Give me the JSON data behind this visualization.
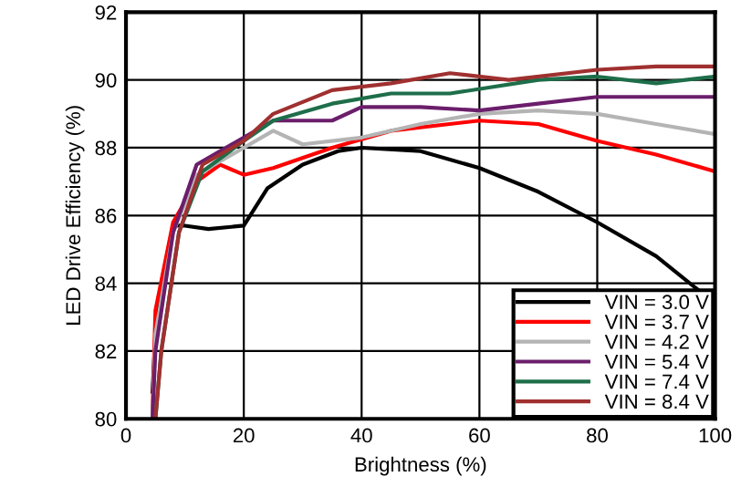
{
  "chart_data": {
    "type": "line",
    "xlabel": "Brightness (%)",
    "ylabel": "LED Drive Efficiency (%)",
    "xlim": [
      0,
      100
    ],
    "xticks": [
      0,
      20,
      40,
      60,
      80,
      100
    ],
    "ylim": [
      80,
      92
    ],
    "yticks": [
      80,
      82,
      84,
      86,
      88,
      90,
      92
    ],
    "grid": true,
    "legend": "bottom right",
    "marker": "none",
    "line_style": "solid",
    "series": [
      {
        "name": "VIN = 3.0 V",
        "color": "#000000",
        "x": [
          4.5,
          5,
          6,
          8,
          10,
          14,
          20,
          24,
          30,
          36,
          40,
          50,
          60,
          70,
          80,
          90,
          100
        ],
        "values": [
          80.8,
          82.5,
          84,
          85.7,
          85.7,
          85.6,
          85.7,
          86.8,
          87.5,
          87.9,
          88.0,
          87.9,
          87.4,
          86.7,
          85.8,
          84.8,
          83.4
        ]
      },
      {
        "name": "VIN = 3.7 V",
        "color": "#ff0000",
        "x": [
          4.5,
          5,
          8,
          12,
          16,
          20,
          25,
          35,
          45,
          60,
          70,
          80,
          90,
          100
        ],
        "values": [
          80.2,
          83.2,
          85.8,
          87.0,
          87.5,
          87.2,
          87.4,
          88.0,
          88.5,
          88.8,
          88.7,
          88.2,
          87.8,
          87.3
        ]
      },
      {
        "name": "VIN = 4.2 V",
        "color": "#b4b4b4",
        "x": [
          4.5,
          5,
          8,
          12,
          20,
          25,
          30,
          40,
          50,
          60,
          70,
          80,
          90,
          100
        ],
        "values": [
          80,
          82.5,
          85.5,
          87.2,
          88.0,
          88.5,
          88.1,
          88.3,
          88.7,
          89.0,
          89.1,
          89.0,
          88.7,
          88.4
        ]
      },
      {
        "name": "VIN = 5.4 V",
        "color": "#6b1e6b",
        "x": [
          4.5,
          5,
          8,
          12,
          20,
          25,
          35,
          40,
          50,
          60,
          70,
          80,
          90,
          100
        ],
        "values": [
          80,
          82,
          85.5,
          87.5,
          88.3,
          88.8,
          88.8,
          89.2,
          89.2,
          89.1,
          89.3,
          89.5,
          89.5,
          89.5
        ]
      },
      {
        "name": "VIN = 7.4 V",
        "color": "#1e6e4a",
        "x": [
          5,
          6,
          9,
          13,
          20,
          25,
          35,
          45,
          55,
          70,
          80,
          90,
          100
        ],
        "values": [
          80,
          82,
          85.5,
          87.3,
          88.2,
          88.8,
          89.3,
          89.6,
          89.6,
          90.0,
          90.1,
          89.9,
          90.1
        ]
      },
      {
        "name": "VIN = 8.4 V",
        "color": "#a03030",
        "x": [
          5,
          6,
          9,
          13,
          20,
          25,
          35,
          45,
          55,
          65,
          80,
          90,
          100
        ],
        "values": [
          80,
          82,
          85.5,
          87.5,
          88.2,
          89.0,
          89.7,
          89.9,
          90.2,
          90.0,
          90.3,
          90.4,
          90.4
        ]
      }
    ]
  }
}
